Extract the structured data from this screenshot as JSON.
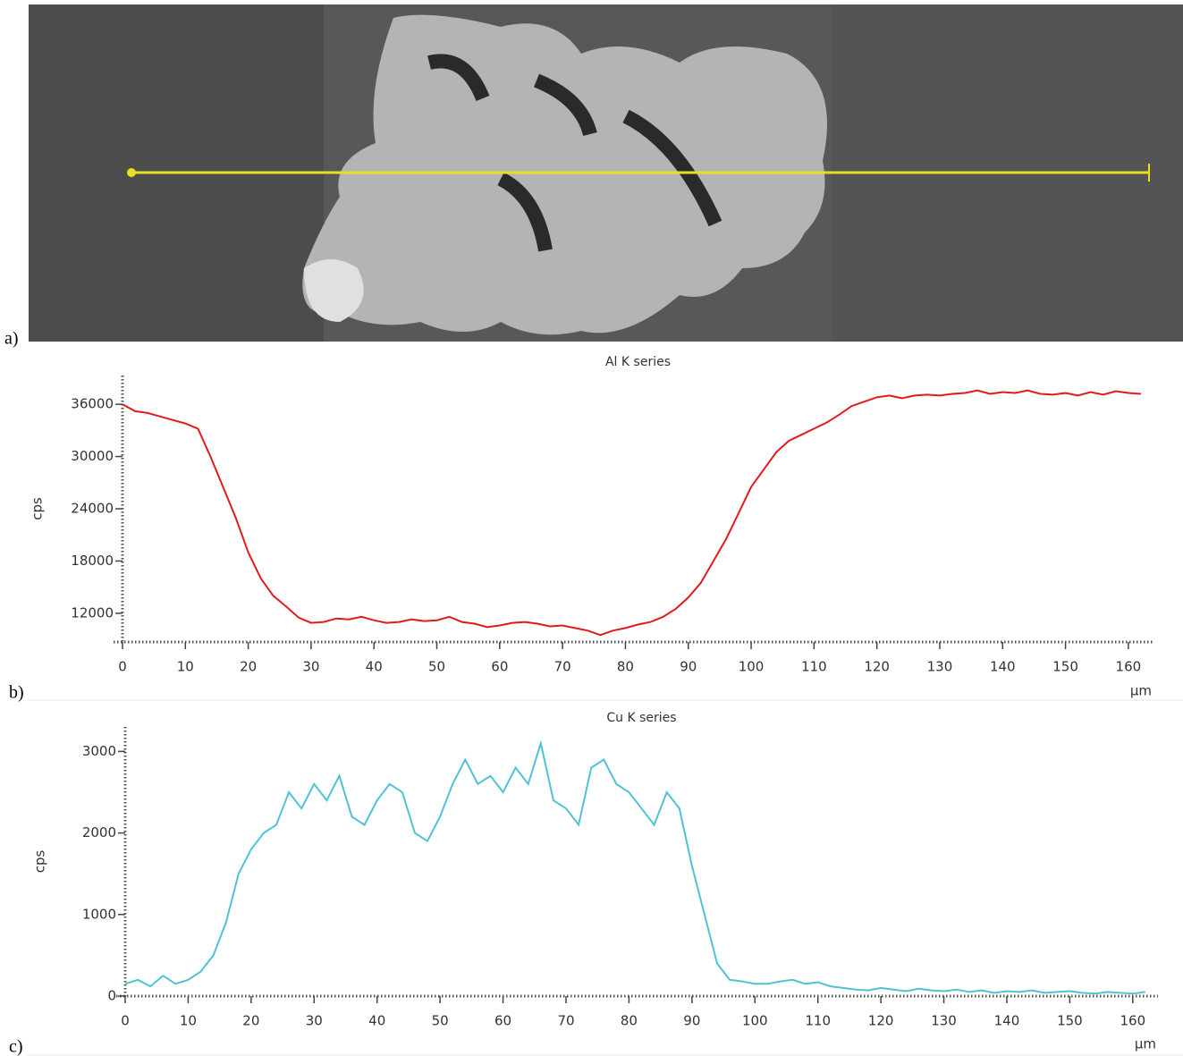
{
  "panel_a": {
    "label": "a)"
  },
  "chart_data": [
    {
      "type": "line",
      "title": "Al K series",
      "panel_label": "b)",
      "xlabel": "µm",
      "ylabel": "cps",
      "color": "#e31a1c",
      "x": [
        0,
        2,
        4,
        6,
        8,
        10,
        12,
        14,
        16,
        18,
        20,
        22,
        24,
        26,
        28,
        30,
        32,
        34,
        36,
        38,
        40,
        42,
        44,
        46,
        48,
        50,
        52,
        54,
        56,
        58,
        60,
        62,
        64,
        66,
        68,
        70,
        72,
        74,
        76,
        78,
        80,
        82,
        84,
        86,
        88,
        90,
        92,
        94,
        96,
        98,
        100,
        102,
        104,
        106,
        108,
        110,
        112,
        114,
        116,
        118,
        120,
        122,
        124,
        126,
        128,
        130,
        132,
        134,
        136,
        138,
        140,
        142,
        144,
        146,
        148,
        150,
        152,
        154,
        156,
        158,
        160,
        162
      ],
      "values": [
        36000,
        35200,
        35000,
        34600,
        34200,
        33800,
        33200,
        30000,
        26500,
        23000,
        19000,
        16000,
        14000,
        12800,
        11500,
        10900,
        11000,
        11400,
        11300,
        11600,
        11200,
        10900,
        11000,
        11300,
        11100,
        11200,
        11600,
        11000,
        10800,
        10400,
        10600,
        10900,
        11000,
        10800,
        10500,
        10600,
        10300,
        10000,
        9500,
        10000,
        10300,
        10700,
        11000,
        11600,
        12500,
        13800,
        15500,
        18000,
        20500,
        23500,
        26500,
        28500,
        30500,
        31800,
        32500,
        33200,
        33900,
        34800,
        35800,
        36300,
        36800,
        37000,
        36700,
        37000,
        37100,
        37000,
        37200,
        37300,
        37600,
        37200,
        37400,
        37300,
        37600,
        37200,
        37100,
        37300,
        37000,
        37400,
        37100,
        37500,
        37300,
        37200
      ],
      "xlim": [
        0,
        164
      ],
      "ylim": [
        8700,
        39300
      ],
      "xticks": [
        0,
        10,
        20,
        30,
        40,
        50,
        60,
        70,
        80,
        90,
        100,
        110,
        120,
        130,
        140,
        150,
        160
      ],
      "yticks": [
        12000,
        18000,
        24000,
        30000,
        36000
      ]
    },
    {
      "type": "line",
      "title": "Cu K series",
      "panel_label": "c)",
      "xlabel": "µm",
      "ylabel": "cps",
      "color": "#4fc3d4",
      "x": [
        0,
        2,
        4,
        6,
        8,
        10,
        12,
        14,
        16,
        18,
        20,
        22,
        24,
        26,
        28,
        30,
        32,
        34,
        36,
        38,
        40,
        42,
        44,
        46,
        48,
        50,
        52,
        54,
        56,
        58,
        60,
        62,
        64,
        66,
        68,
        70,
        72,
        74,
        76,
        78,
        80,
        82,
        84,
        86,
        88,
        90,
        92,
        94,
        96,
        98,
        100,
        102,
        104,
        106,
        108,
        110,
        112,
        114,
        116,
        118,
        120,
        122,
        124,
        126,
        128,
        130,
        132,
        134,
        136,
        138,
        140,
        142,
        144,
        146,
        148,
        150,
        152,
        154,
        156,
        158,
        160,
        162
      ],
      "values": [
        150,
        200,
        120,
        250,
        150,
        200,
        300,
        500,
        900,
        1500,
        1800,
        2000,
        2100,
        2500,
        2300,
        2600,
        2400,
        2700,
        2200,
        2100,
        2400,
        2600,
        2500,
        2000,
        1900,
        2200,
        2600,
        2900,
        2600,
        2700,
        2500,
        2800,
        2600,
        3100,
        2400,
        2300,
        2100,
        2800,
        2900,
        2600,
        2500,
        2300,
        2100,
        2500,
        2300,
        1600,
        1000,
        400,
        200,
        180,
        150,
        150,
        180,
        200,
        150,
        170,
        120,
        100,
        80,
        70,
        100,
        80,
        60,
        90,
        70,
        60,
        80,
        50,
        70,
        40,
        60,
        50,
        70,
        40,
        50,
        60,
        40,
        30,
        50,
        40,
        30,
        50
      ],
      "xlim": [
        0,
        164
      ],
      "ylim": [
        0,
        3300
      ],
      "xticks": [
        0,
        10,
        20,
        30,
        40,
        50,
        60,
        70,
        80,
        90,
        100,
        110,
        120,
        130,
        140,
        150,
        160
      ],
      "yticks": [
        0,
        1000,
        2000,
        3000
      ]
    }
  ]
}
